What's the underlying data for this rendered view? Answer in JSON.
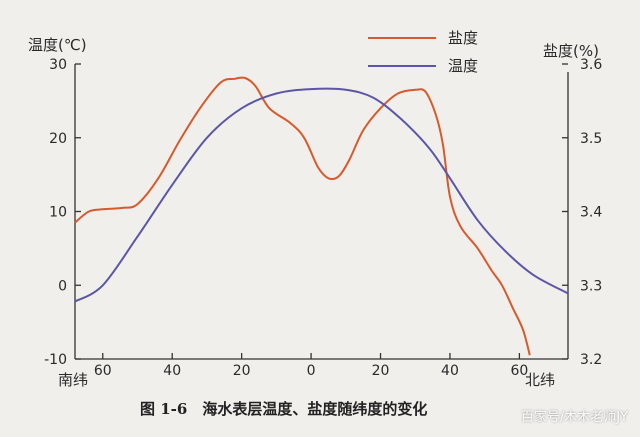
{
  "chart_data": {
    "type": "line",
    "x_axis": {
      "ticks": [
        60,
        40,
        20,
        0,
        20,
        40,
        60
      ],
      "tick_latitudes": [
        -60,
        -40,
        -20,
        0,
        20,
        40,
        60
      ],
      "left_label": "南纬",
      "right_label": "北纬",
      "range": [
        -68,
        74
      ]
    },
    "y_left": {
      "label": "温度(℃)",
      "ticks": [
        30,
        20,
        10,
        0,
        -10
      ],
      "range": [
        -10,
        30
      ]
    },
    "y_right": {
      "label": "盐度(%)",
      "ticks": [
        "3.6",
        "3.5",
        "3.4",
        "3.3",
        "3.2"
      ],
      "range": [
        3.2,
        3.6
      ]
    },
    "series": [
      {
        "name": "盐度",
        "axis": "right",
        "color": "#d65a2c",
        "points": [
          [
            -68,
            3.385
          ],
          [
            -64,
            3.4
          ],
          [
            -60,
            3.403
          ],
          [
            -54,
            3.405
          ],
          [
            -50,
            3.41
          ],
          [
            -44,
            3.445
          ],
          [
            -38,
            3.495
          ],
          [
            -32,
            3.54
          ],
          [
            -26,
            3.575
          ],
          [
            -22,
            3.58
          ],
          [
            -19,
            3.581
          ],
          [
            -16,
            3.57
          ],
          [
            -12,
            3.54
          ],
          [
            -6,
            3.52
          ],
          [
            -2,
            3.5
          ],
          [
            2,
            3.46
          ],
          [
            5,
            3.445
          ],
          [
            8,
            3.448
          ],
          [
            11,
            3.47
          ],
          [
            15,
            3.51
          ],
          [
            20,
            3.54
          ],
          [
            25,
            3.56
          ],
          [
            30,
            3.565
          ],
          [
            33,
            3.562
          ],
          [
            36,
            3.53
          ],
          [
            38,
            3.49
          ],
          [
            40,
            3.42
          ],
          [
            43,
            3.38
          ],
          [
            48,
            3.35
          ],
          [
            52,
            3.32
          ],
          [
            55,
            3.3
          ],
          [
            58,
            3.27
          ],
          [
            61,
            3.24
          ],
          [
            63,
            3.205
          ]
        ]
      },
      {
        "name": "温度",
        "axis": "left",
        "color": "#5b56a6",
        "points": [
          [
            -68,
            -2.2
          ],
          [
            -60,
            0
          ],
          [
            -50,
            6.6
          ],
          [
            -40,
            13.6
          ],
          [
            -30,
            20
          ],
          [
            -20,
            24
          ],
          [
            -10,
            26
          ],
          [
            0,
            26.6
          ],
          [
            10,
            26.5
          ],
          [
            18,
            25.4
          ],
          [
            26,
            22.5
          ],
          [
            34,
            18.6
          ],
          [
            40,
            14.5
          ],
          [
            48,
            8.8
          ],
          [
            56,
            4.6
          ],
          [
            64,
            1.4
          ],
          [
            74,
            -1.1
          ]
        ]
      }
    ],
    "legend": {
      "position": "top-right",
      "entries": [
        "盐度",
        "温度"
      ]
    },
    "grid": false,
    "title": "图 1-6　海水表层温度、盐度随纬度的变化"
  },
  "watermark": "百家号/木木老师JY"
}
